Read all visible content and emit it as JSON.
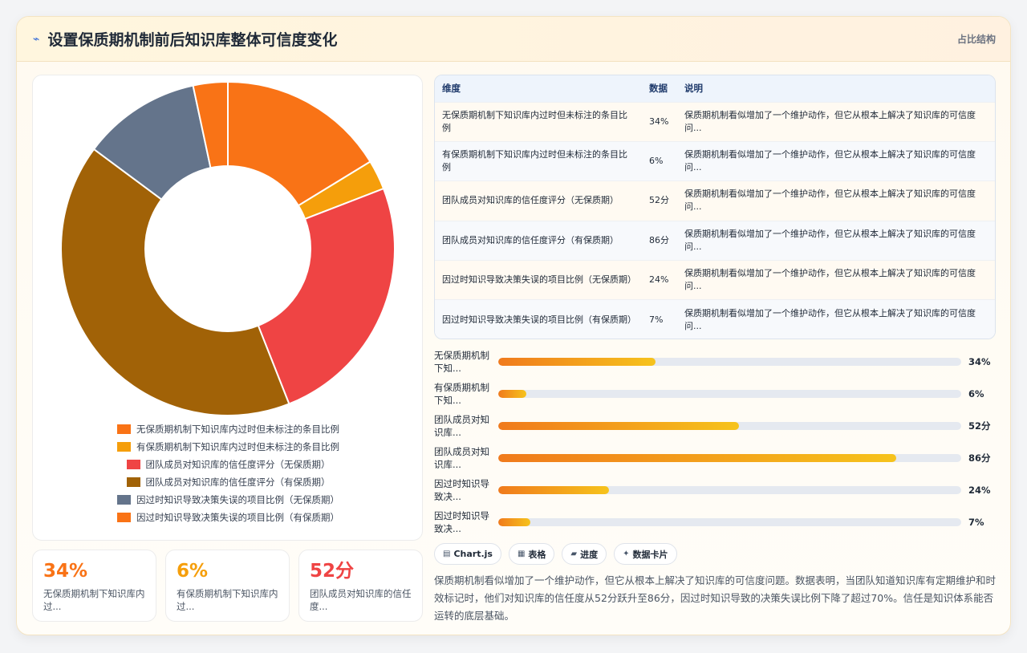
{
  "header": {
    "icon": "line-chart-icon",
    "title": "设置保质期机制前后知识库整体可信度变化",
    "tag": "占比结构"
  },
  "colors": {
    "palette": [
      "#f97316",
      "#f59e0b",
      "#ef4444",
      "#a16207",
      "#64748b",
      "#f97316"
    ]
  },
  "chart_data": {
    "type": "pie",
    "variant": "doughnut",
    "categories": [
      "无保质期机制下知识库内过时但未标注的条目比例",
      "有保质期机制下知识库内过时但未标注的条目比例",
      "团队成员对知识库的信任度评分（无保质期）",
      "团队成员对知识库的信任度评分（有保质期）",
      "因过时知识导致决策失误的项目比例（无保质期）",
      "因过时知识导致决策失误的项目比例（有保质期）"
    ],
    "values": [
      34,
      6,
      52,
      86,
      24,
      7
    ],
    "legend": "bottom"
  },
  "table": {
    "headers": [
      "维度",
      "数据",
      "说明"
    ],
    "rows": [
      {
        "dim": "无保质期机制下知识库内过时但未标注的条目比例",
        "val": "34%",
        "note": "保质期机制看似增加了一个维护动作，但它从根本上解决了知识库的可信度问..."
      },
      {
        "dim": "有保质期机制下知识库内过时但未标注的条目比例",
        "val": "6%",
        "note": "保质期机制看似增加了一个维护动作，但它从根本上解决了知识库的可信度问..."
      },
      {
        "dim": "团队成员对知识库的信任度评分（无保质期）",
        "val": "52分",
        "note": "保质期机制看似增加了一个维护动作，但它从根本上解决了知识库的可信度问..."
      },
      {
        "dim": "团队成员对知识库的信任度评分（有保质期）",
        "val": "86分",
        "note": "保质期机制看似增加了一个维护动作，但它从根本上解决了知识库的可信度问..."
      },
      {
        "dim": "因过时知识导致决策失误的项目比例（无保质期）",
        "val": "24%",
        "note": "保质期机制看似增加了一个维护动作，但它从根本上解决了知识库的可信度问..."
      },
      {
        "dim": "因过时知识导致决策失误的项目比例（有保质期）",
        "val": "7%",
        "note": "保质期机制看似增加了一个维护动作，但它从根本上解决了知识库的可信度问..."
      }
    ]
  },
  "progress": [
    {
      "label": "无保质期机制下知...",
      "value": 34,
      "value_text": "34%"
    },
    {
      "label": "有保质期机制下知...",
      "value": 6,
      "value_text": "6%"
    },
    {
      "label": "团队成员对知识库...",
      "value": 52,
      "value_text": "52分"
    },
    {
      "label": "团队成员对知识库...",
      "value": 86,
      "value_text": "86分"
    },
    {
      "label": "因过时知识导致决...",
      "value": 24,
      "value_text": "24%"
    },
    {
      "label": "因过时知识导致决...",
      "value": 7,
      "value_text": "7%"
    }
  ],
  "stats": [
    {
      "value": "34%",
      "label": "无保质期机制下知识库内过...",
      "color": "#f97316"
    },
    {
      "value": "6%",
      "label": "有保质期机制下知识库内过...",
      "color": "#f59e0b"
    },
    {
      "value": "52分",
      "label": "团队成员对知识库的信任度...",
      "color": "#ef4444"
    }
  ],
  "chips": [
    {
      "icon": "chart-icon",
      "glyph": "▤",
      "label": "Chart.js"
    },
    {
      "icon": "table-icon",
      "glyph": "▦",
      "label": "表格"
    },
    {
      "icon": "progress-icon",
      "glyph": "▰",
      "label": "进度"
    },
    {
      "icon": "sparkle-icon",
      "glyph": "✦",
      "label": "数据卡片"
    }
  ],
  "summary": "保质期机制看似增加了一个维护动作，但它从根本上解决了知识库的可信度问题。数据表明，当团队知道知识库有定期维护和时效标记时，他们对知识库的信任度从52分跃升至86分，因过时知识导致的决策失误比例下降了超过70%。信任是知识体系能否运转的底层基础。"
}
